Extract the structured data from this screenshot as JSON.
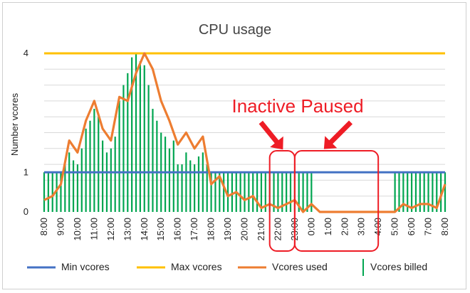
{
  "chart_data": {
    "type": "line",
    "title": "CPU usage",
    "xlabel": "",
    "ylabel": "Number vcores",
    "ylim": [
      0,
      4
    ],
    "yticks": [
      "0",
      "1",
      "4"
    ],
    "x_tick_labels": [
      "8:00",
      "9:00",
      "10:00",
      "11:00",
      "12:00",
      "13:00",
      "14:00",
      "15:00",
      "16:00",
      "17:00",
      "18:00",
      "19:00",
      "20:00",
      "21:00",
      "22:00",
      "23:00",
      "0:00",
      "1:00",
      "2:00",
      "3:00",
      "4:00",
      "5:00",
      "6:00",
      "7:00",
      "8:00"
    ],
    "x_range_hours": [
      0,
      24
    ],
    "series": [
      {
        "name": "Min vcores",
        "kind": "hline",
        "color": "#4472c4",
        "value": 1
      },
      {
        "name": "Max vcores",
        "kind": "hline",
        "color": "#ffc000",
        "value": 4
      },
      {
        "name": "Vcores used",
        "kind": "line",
        "color": "#ed7d31",
        "x": [
          0,
          0.5,
          1,
          1.5,
          2,
          2.5,
          3,
          3.5,
          4,
          4.5,
          5,
          5.5,
          6,
          6.5,
          7,
          7.5,
          8,
          8.5,
          9,
          9.5,
          10,
          10.5,
          11,
          11.5,
          12,
          12.5,
          13,
          13.5,
          14,
          14.5,
          15,
          15.5,
          16,
          16.5,
          17,
          17.5,
          18,
          18.5,
          19,
          19.5,
          20,
          20.5,
          21,
          21.5,
          22,
          22.5,
          23,
          23.5,
          24
        ],
        "values": [
          0.3,
          0.4,
          0.7,
          1.8,
          1.5,
          2.3,
          2.8,
          2.1,
          1.8,
          2.9,
          2.8,
          3.5,
          4.0,
          3.6,
          2.8,
          2.3,
          1.7,
          2.0,
          1.6,
          1.9,
          0.7,
          0.9,
          0.4,
          0.5,
          0.3,
          0.4,
          0.1,
          0.2,
          0.1,
          0.2,
          0.3,
          0.0,
          0.2,
          0.0,
          0.0,
          0.0,
          0.0,
          0.0,
          0.0,
          0.0,
          0.0,
          0.0,
          0.0,
          0.2,
          0.1,
          0.2,
          0.2,
          0.1,
          0.7
        ]
      },
      {
        "name": "Vcores billed",
        "kind": "bars",
        "color": "#00a550",
        "x": [
          0,
          0.25,
          0.5,
          0.75,
          1,
          1.25,
          1.5,
          1.75,
          2,
          2.25,
          2.5,
          2.75,
          3,
          3.25,
          3.5,
          3.75,
          4,
          4.25,
          4.5,
          4.75,
          5,
          5.25,
          5.5,
          5.75,
          6,
          6.25,
          6.5,
          6.75,
          7,
          7.25,
          7.5,
          7.75,
          8,
          8.25,
          8.5,
          8.75,
          9,
          9.25,
          9.5,
          9.75,
          10,
          10.25,
          10.5,
          10.75,
          11,
          11.25,
          11.5,
          11.75,
          12,
          12.25,
          12.5,
          12.75,
          13,
          13.25,
          13.5,
          13.75,
          14,
          14.25,
          14.5,
          14.75,
          15,
          15.25,
          15.5,
          15.75,
          16,
          21,
          21.25,
          21.5,
          21.75,
          22,
          22.25,
          22.5,
          22.75,
          23,
          23.25,
          23.5,
          23.75,
          24
        ],
        "values": [
          1,
          1,
          1,
          1,
          1,
          1.2,
          1.5,
          1.3,
          1.2,
          1.6,
          2.1,
          2.3,
          2.6,
          2.4,
          1.8,
          1.5,
          1.6,
          1.9,
          2.8,
          3.2,
          3.5,
          3.9,
          4.0,
          3.8,
          3.7,
          3.2,
          2.6,
          2.3,
          2.0,
          1.9,
          1.6,
          1.8,
          1.2,
          1.2,
          1.5,
          1.3,
          1.2,
          1.4,
          1.5,
          1.2,
          1,
          1,
          1,
          1,
          1,
          1,
          1,
          1,
          1,
          1,
          1,
          1,
          1,
          1,
          1,
          1,
          1,
          1,
          1,
          1,
          1,
          1,
          1,
          1,
          1,
          1,
          1,
          1,
          1,
          1,
          1,
          1,
          1,
          1,
          1,
          1,
          1,
          1
        ]
      }
    ],
    "annotations": [
      {
        "text": "Inactive",
        "region_hours": [
          13.5,
          15.0
        ],
        "color": "#ee1c25"
      },
      {
        "text": "Paused",
        "region_hours": [
          15.0,
          20.0
        ],
        "color": "#ee1c25"
      }
    ],
    "legend": {
      "placement": "bottom",
      "entries": [
        "Min vcores",
        "Max vcores",
        "Vcores used",
        "Vcores billed"
      ]
    },
    "grid": true
  }
}
